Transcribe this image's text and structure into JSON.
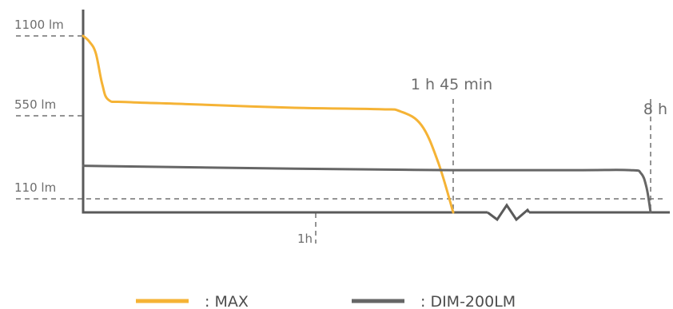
{
  "chart_data": {
    "type": "line",
    "x_unit_note": "x axis is time (hours), with a broken segment between 1h45min and 8h",
    "y_ticks": [
      {
        "value": 1100,
        "label": "1100 lm"
      },
      {
        "value": 550,
        "label": "550 lm"
      },
      {
        "value": 110,
        "label": "110 lm"
      }
    ],
    "x_annotations": [
      {
        "label": "1h",
        "hours": 1.0
      },
      {
        "label": "1 h 45 min",
        "hours": 1.75
      },
      {
        "label": "8 h",
        "hours": 8.0
      }
    ],
    "series": [
      {
        "name": "MAX",
        "legend_label": ": MAX",
        "color": "#f5b335",
        "points": [
          {
            "hours": 0.0,
            "lumens": 1100
          },
          {
            "hours": 0.03,
            "lumens": 1060
          },
          {
            "hours": 0.06,
            "lumens": 980
          },
          {
            "hours": 0.09,
            "lumens": 770
          },
          {
            "hours": 0.12,
            "lumens": 660
          },
          {
            "hours": 0.2,
            "lumens": 645
          },
          {
            "hours": 0.5,
            "lumens": 630
          },
          {
            "hours": 1.0,
            "lumens": 605
          },
          {
            "hours": 1.4,
            "lumens": 595
          },
          {
            "hours": 1.5,
            "lumens": 580
          },
          {
            "hours": 1.6,
            "lumens": 500
          },
          {
            "hours": 1.68,
            "lumens": 300
          },
          {
            "hours": 1.75,
            "lumens": 0
          }
        ]
      },
      {
        "name": "DIM-200LM",
        "legend_label": ": DIM-200LM",
        "color": "#666666",
        "points": [
          {
            "hours": 0.0,
            "lumens": 285
          },
          {
            "hours": 1.0,
            "lumens": 270
          },
          {
            "hours": 1.75,
            "lumens": 262
          },
          {
            "hours": 2.5,
            "lumens": 262
          },
          {
            "hours": 6.5,
            "lumens": 262
          },
          {
            "hours": 7.3,
            "lumens": 245
          },
          {
            "hours": 7.7,
            "lumens": 170
          },
          {
            "hours": 8.0,
            "lumens": 0
          }
        ]
      }
    ],
    "axis_break": "zigzag between 1 h 45 min and 8 h"
  }
}
